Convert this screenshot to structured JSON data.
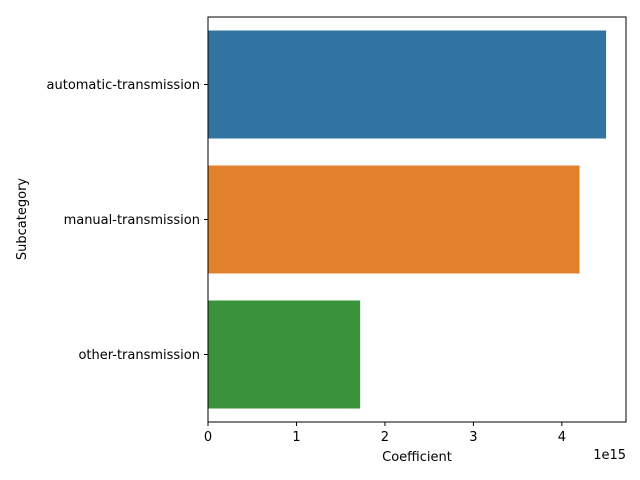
{
  "chart_data": {
    "type": "bar",
    "orientation": "horizontal",
    "categories": [
      "automatic-transmission",
      "manual-transmission",
      "other-transmission"
    ],
    "values": [
      4500000000000000.0,
      4200000000000000.0,
      1720000000000000.0
    ],
    "colors": [
      "#3274a1",
      "#e1812c",
      "#3a923a"
    ],
    "xlabel": "Coefficient",
    "ylabel": "Subcategory",
    "x_ticks": [
      0,
      1,
      2,
      3,
      4
    ],
    "x_tick_labels": [
      "0",
      "1",
      "2",
      "3",
      "4"
    ],
    "x_scale_label": "1e15",
    "xlim": [
      0,
      4725000000000000.0
    ],
    "grid": false,
    "legend": "none"
  }
}
